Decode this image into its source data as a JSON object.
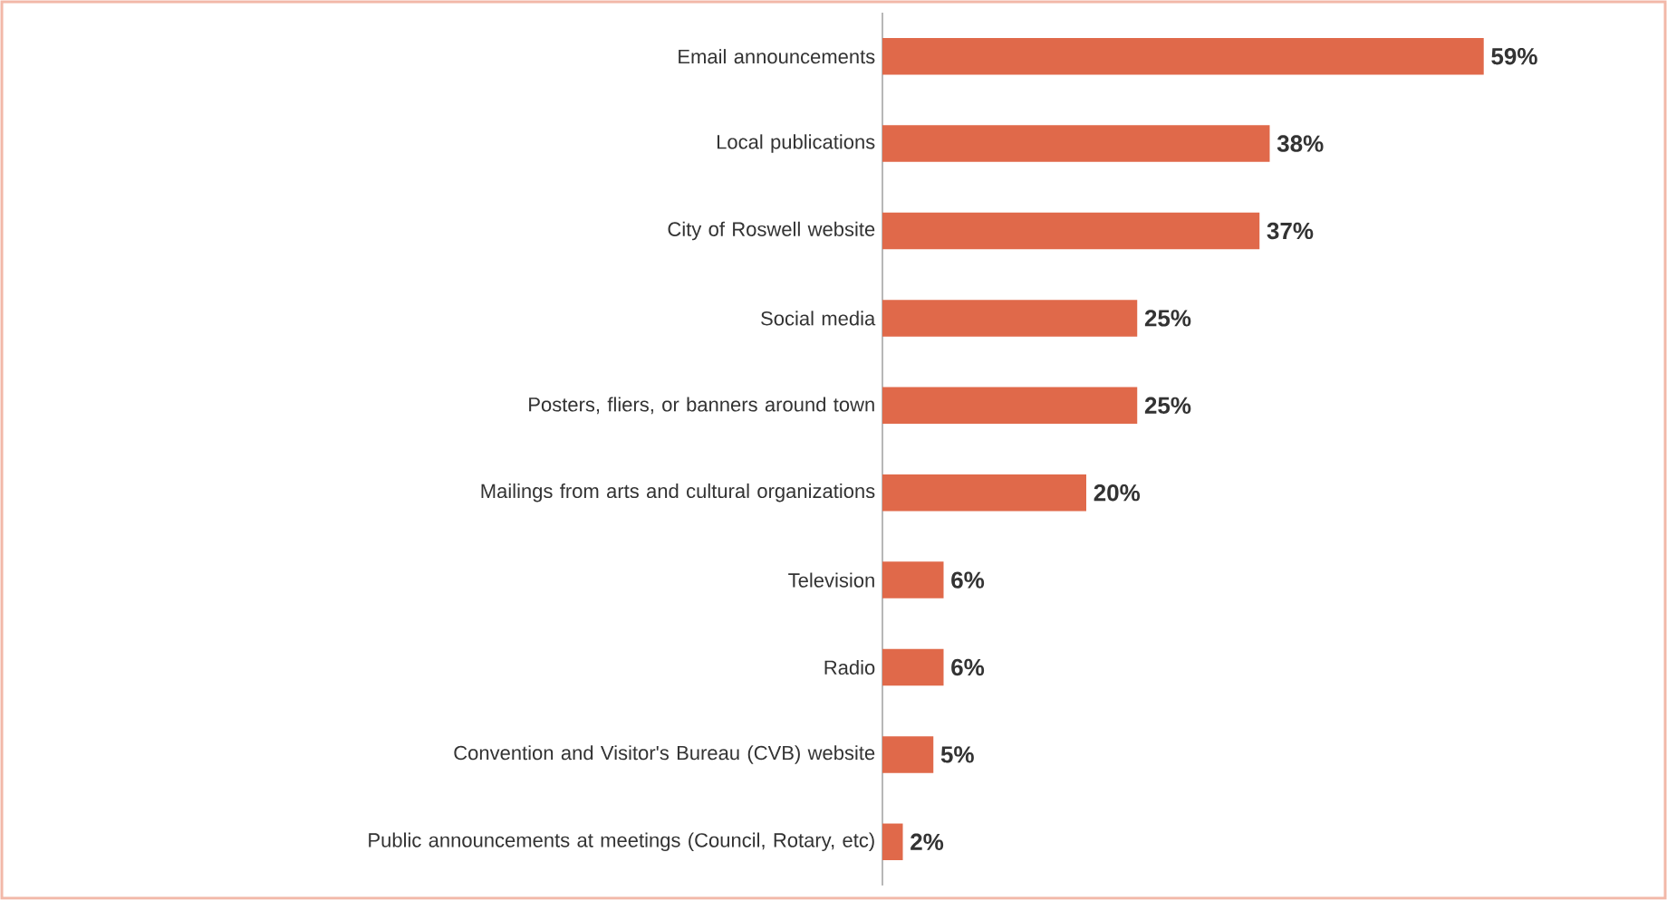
{
  "chart_data": {
    "type": "bar",
    "orientation": "horizontal",
    "categories": [
      "Email announcements",
      "Local publications",
      "City of Roswell website",
      "Social media",
      "Posters, fliers, or banners around town",
      "Mailings from arts and cultural organizations",
      "Television",
      "Radio",
      "Convention and Visitor's Bureau (CVB) website",
      "Public announcements at meetings (Council, Rotary, etc)"
    ],
    "values": [
      59,
      38,
      37,
      25,
      25,
      20,
      6,
      6,
      5,
      2
    ],
    "value_labels": [
      "59%",
      "38%",
      "37%",
      "25%",
      "25%",
      "20%",
      "6%",
      "6%",
      "5%",
      "2%"
    ],
    "color": "#e0694a"
  }
}
